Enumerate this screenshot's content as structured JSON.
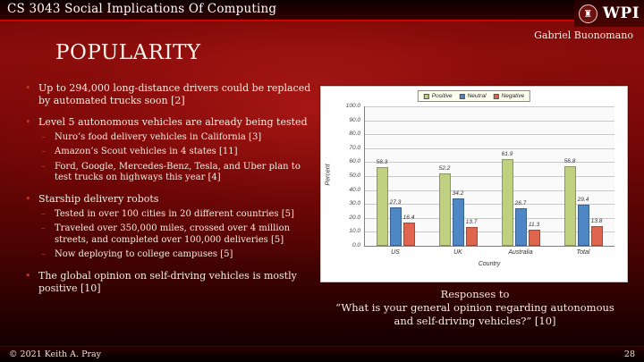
{
  "header": {
    "course_title": "CS 3043 Social Implications Of Computing",
    "logo_text": "WPI",
    "logo_seal_glyph": "♜",
    "author": "Gabriel Buonomano",
    "accent_color": "#d40000"
  },
  "slide": {
    "title": "POPULARITY",
    "bullet_char": "•",
    "sub_bullet_char": "–",
    "bullets": [
      {
        "level": 1,
        "text": "Up to 294,000 long-distance drivers could be replaced by automated trucks soon [2]"
      },
      {
        "level": 1,
        "text": "Level 5 autonomous vehicles are already being tested"
      },
      {
        "level": 2,
        "text": "Nuro’s food delivery vehicles in California [3]"
      },
      {
        "level": 2,
        "text": "Amazon’s Scout vehicles in 4 states [11]"
      },
      {
        "level": 2,
        "text": "Ford, Google, Mercedes-Benz, Tesla, and Uber plan to test trucks on highways this year [4]"
      },
      {
        "level": 1,
        "text": "Starship delivery robots"
      },
      {
        "level": 2,
        "text": "Tested in over 100 cities in 20 different countries [5]"
      },
      {
        "level": 2,
        "text": "Traveled over 350,000 miles, crossed over 4 million streets, and completed over 100,000 deliveries [5]"
      },
      {
        "level": 2,
        "text": "Now deploying to college campuses [5]"
      },
      {
        "level": 1,
        "text": "The global opinion on self-driving vehicles is mostly positive [10]"
      }
    ],
    "caption_line1": "Responses to",
    "caption_line2": "“What is your general opinion regarding autonomous and self-driving vehicles?” [10]"
  },
  "chart_data": {
    "type": "bar",
    "title": "",
    "categories": [
      "US",
      "UK",
      "Australia",
      "Total"
    ],
    "series": [
      {
        "name": "Positive",
        "color": "#c0d080",
        "values": [
          56.3,
          52.2,
          61.9,
          56.8
        ]
      },
      {
        "name": "Neutral",
        "color": "#4f86c6",
        "values": [
          27.3,
          34.2,
          26.7,
          29.4
        ]
      },
      {
        "name": "Negative",
        "color": "#e0654f",
        "values": [
          16.4,
          13.7,
          11.3,
          13.8
        ]
      }
    ],
    "xlabel": "Country",
    "ylabel": "Percent",
    "ylim": [
      0,
      100
    ],
    "ytick_step": 10,
    "ytick_labels": [
      "0.0",
      "10.0",
      "20.0",
      "30.0",
      "40.0",
      "50.0",
      "60.0",
      "70.0",
      "80.0",
      "90.0",
      "100.0"
    ],
    "legend_position": "top",
    "grid": true
  },
  "footer": {
    "copyright": "© 2021 Keith A. Pray",
    "page_number": "28"
  }
}
